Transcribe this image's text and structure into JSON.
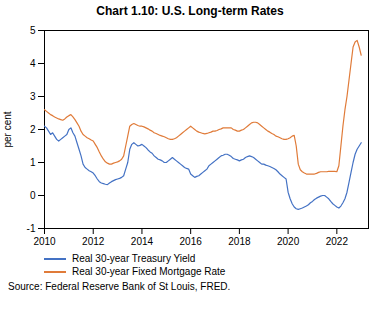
{
  "chart_data": {
    "type": "line",
    "title": "Chart 1.10: U.S. Long-term Rates",
    "ylabel": "per cent",
    "caption": "Source: Federal Reserve Bank of St Louis, FRED.",
    "legend": "bottom",
    "grid": false,
    "xlim": [
      2010,
      2023.3
    ],
    "xticks": [
      2010,
      2012,
      2014,
      2016,
      2018,
      2020,
      2022
    ],
    "ylim": [
      -1,
      5
    ],
    "yticks": [
      -1,
      0,
      1,
      2,
      3,
      4,
      5
    ],
    "x": [
      2010.0,
      2010.083,
      2010.167,
      2010.25,
      2010.333,
      2010.417,
      2010.5,
      2010.583,
      2010.667,
      2010.75,
      2010.833,
      2010.917,
      2011.0,
      2011.083,
      2011.167,
      2011.25,
      2011.333,
      2011.417,
      2011.5,
      2011.583,
      2011.667,
      2011.75,
      2011.833,
      2011.917,
      2012.0,
      2012.083,
      2012.167,
      2012.25,
      2012.333,
      2012.417,
      2012.5,
      2012.583,
      2012.667,
      2012.75,
      2012.833,
      2012.917,
      2013.0,
      2013.083,
      2013.167,
      2013.25,
      2013.333,
      2013.417,
      2013.5,
      2013.583,
      2013.667,
      2013.75,
      2013.833,
      2013.917,
      2014.0,
      2014.083,
      2014.167,
      2014.25,
      2014.333,
      2014.417,
      2014.5,
      2014.583,
      2014.667,
      2014.75,
      2014.833,
      2014.917,
      2015.0,
      2015.083,
      2015.167,
      2015.25,
      2015.333,
      2015.417,
      2015.5,
      2015.583,
      2015.667,
      2015.75,
      2015.833,
      2015.917,
      2016.0,
      2016.083,
      2016.167,
      2016.25,
      2016.333,
      2016.417,
      2016.5,
      2016.583,
      2016.667,
      2016.75,
      2016.833,
      2016.917,
      2017.0,
      2017.083,
      2017.167,
      2017.25,
      2017.333,
      2017.417,
      2017.5,
      2017.583,
      2017.667,
      2017.75,
      2017.833,
      2017.917,
      2018.0,
      2018.083,
      2018.167,
      2018.25,
      2018.333,
      2018.417,
      2018.5,
      2018.583,
      2018.667,
      2018.75,
      2018.833,
      2018.917,
      2019.0,
      2019.083,
      2019.167,
      2019.25,
      2019.333,
      2019.417,
      2019.5,
      2019.583,
      2019.667,
      2019.75,
      2019.833,
      2019.917,
      2020.0,
      2020.083,
      2020.167,
      2020.25,
      2020.333,
      2020.417,
      2020.5,
      2020.583,
      2020.667,
      2020.75,
      2020.833,
      2020.917,
      2021.0,
      2021.083,
      2021.167,
      2021.25,
      2021.333,
      2021.417,
      2021.5,
      2021.583,
      2021.667,
      2021.75,
      2021.833,
      2021.917,
      2022.0,
      2022.083,
      2022.167,
      2022.25,
      2022.333,
      2022.417,
      2022.5,
      2022.583,
      2022.667,
      2022.75,
      2022.833,
      2022.917,
      2023.0
    ],
    "series": [
      {
        "name": "Real 30-year Treasury Yield",
        "color": "#4472c4",
        "values": [
          2.1,
          2.05,
          1.95,
          1.85,
          1.9,
          1.8,
          1.7,
          1.65,
          1.7,
          1.75,
          1.8,
          1.85,
          2.0,
          2.05,
          1.9,
          1.8,
          1.6,
          1.4,
          1.2,
          0.95,
          0.85,
          0.8,
          0.75,
          0.72,
          0.68,
          0.6,
          0.5,
          0.42,
          0.38,
          0.36,
          0.34,
          0.33,
          0.38,
          0.42,
          0.45,
          0.48,
          0.5,
          0.52,
          0.55,
          0.6,
          0.8,
          1.0,
          1.4,
          1.55,
          1.6,
          1.55,
          1.5,
          1.52,
          1.55,
          1.5,
          1.45,
          1.38,
          1.32,
          1.28,
          1.2,
          1.15,
          1.1,
          1.08,
          1.05,
          1.0,
          1.0,
          1.05,
          1.1,
          1.15,
          1.1,
          1.05,
          1.0,
          0.95,
          0.9,
          0.85,
          0.82,
          0.8,
          0.65,
          0.6,
          0.55,
          0.58,
          0.6,
          0.65,
          0.7,
          0.75,
          0.8,
          0.9,
          0.95,
          1.0,
          1.05,
          1.1,
          1.15,
          1.2,
          1.22,
          1.25,
          1.25,
          1.22,
          1.18,
          1.12,
          1.1,
          1.08,
          1.05,
          1.08,
          1.1,
          1.15,
          1.18,
          1.2,
          1.18,
          1.15,
          1.1,
          1.05,
          1.0,
          0.95,
          0.95,
          0.92,
          0.9,
          0.88,
          0.85,
          0.82,
          0.78,
          0.72,
          0.65,
          0.6,
          0.55,
          0.5,
          0.1,
          -0.1,
          -0.25,
          -0.35,
          -0.4,
          -0.42,
          -0.4,
          -0.38,
          -0.35,
          -0.32,
          -0.28,
          -0.22,
          -0.18,
          -0.12,
          -0.08,
          -0.05,
          -0.02,
          0.0,
          0.0,
          -0.05,
          -0.1,
          -0.18,
          -0.25,
          -0.3,
          -0.35,
          -0.38,
          -0.32,
          -0.22,
          -0.1,
          0.1,
          0.4,
          0.7,
          1.0,
          1.25,
          1.4,
          1.5,
          1.6
        ]
      },
      {
        "name": "Real 30-year Fixed Mortgage Rate",
        "color": "#e07b39",
        "values": [
          2.6,
          2.55,
          2.5,
          2.45,
          2.42,
          2.38,
          2.35,
          2.32,
          2.3,
          2.28,
          2.32,
          2.38,
          2.42,
          2.45,
          2.38,
          2.3,
          2.2,
          2.1,
          1.95,
          1.85,
          1.8,
          1.75,
          1.72,
          1.68,
          1.65,
          1.55,
          1.45,
          1.32,
          1.2,
          1.1,
          1.02,
          0.98,
          0.95,
          0.95,
          0.98,
          1.0,
          1.02,
          1.05,
          1.1,
          1.2,
          1.5,
          1.8,
          2.1,
          2.15,
          2.18,
          2.15,
          2.12,
          2.1,
          2.1,
          2.08,
          2.05,
          2.02,
          1.98,
          1.95,
          1.9,
          1.88,
          1.85,
          1.82,
          1.8,
          1.78,
          1.75,
          1.72,
          1.7,
          1.7,
          1.72,
          1.75,
          1.8,
          1.85,
          1.9,
          1.95,
          2.0,
          2.05,
          2.1,
          2.05,
          2.0,
          1.95,
          1.92,
          1.9,
          1.88,
          1.87,
          1.88,
          1.9,
          1.92,
          1.95,
          1.95,
          1.97,
          2.0,
          2.02,
          2.05,
          2.05,
          2.05,
          2.05,
          2.05,
          2.0,
          1.98,
          1.95,
          1.95,
          1.98,
          2.0,
          2.05,
          2.1,
          2.15,
          2.2,
          2.22,
          2.22,
          2.2,
          2.15,
          2.1,
          2.05,
          2.0,
          1.95,
          1.92,
          1.88,
          1.85,
          1.8,
          1.78,
          1.75,
          1.72,
          1.7,
          1.7,
          1.72,
          1.75,
          1.8,
          1.82,
          1.5,
          0.95,
          0.78,
          0.72,
          0.68,
          0.65,
          0.65,
          0.65,
          0.65,
          0.65,
          0.67,
          0.7,
          0.72,
          0.72,
          0.72,
          0.72,
          0.73,
          0.73,
          0.73,
          0.73,
          0.72,
          0.9,
          1.5,
          2.1,
          2.6,
          3.0,
          3.5,
          4.0,
          4.5,
          4.65,
          4.7,
          4.5,
          4.25
        ]
      }
    ]
  }
}
